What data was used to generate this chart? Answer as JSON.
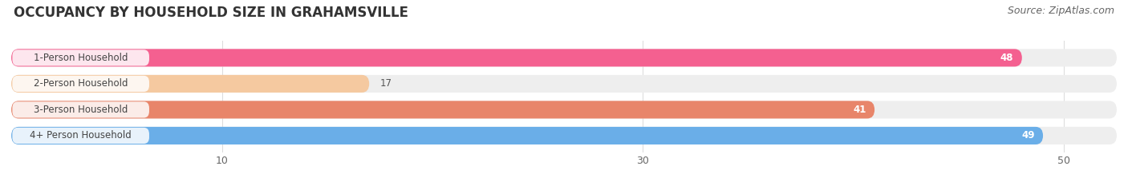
{
  "title": "OCCUPANCY BY HOUSEHOLD SIZE IN GRAHAMSVILLE",
  "source": "Source: ZipAtlas.com",
  "categories": [
    "1-Person Household",
    "2-Person Household",
    "3-Person Household",
    "4+ Person Household"
  ],
  "values": [
    48,
    17,
    41,
    49
  ],
  "bar_colors": [
    "#f46090",
    "#f5c9a0",
    "#e8856a",
    "#6aaee8"
  ],
  "label_colors": [
    "white",
    "black",
    "white",
    "white"
  ],
  "xlim": [
    0,
    52.5
  ],
  "xticks": [
    10,
    30,
    50
  ],
  "background_color": "#ffffff",
  "bar_bg_color": "#eeeeee",
  "title_fontsize": 12,
  "source_fontsize": 9,
  "label_fontsize": 8.5,
  "value_fontsize": 8.5,
  "bar_height": 0.68
}
